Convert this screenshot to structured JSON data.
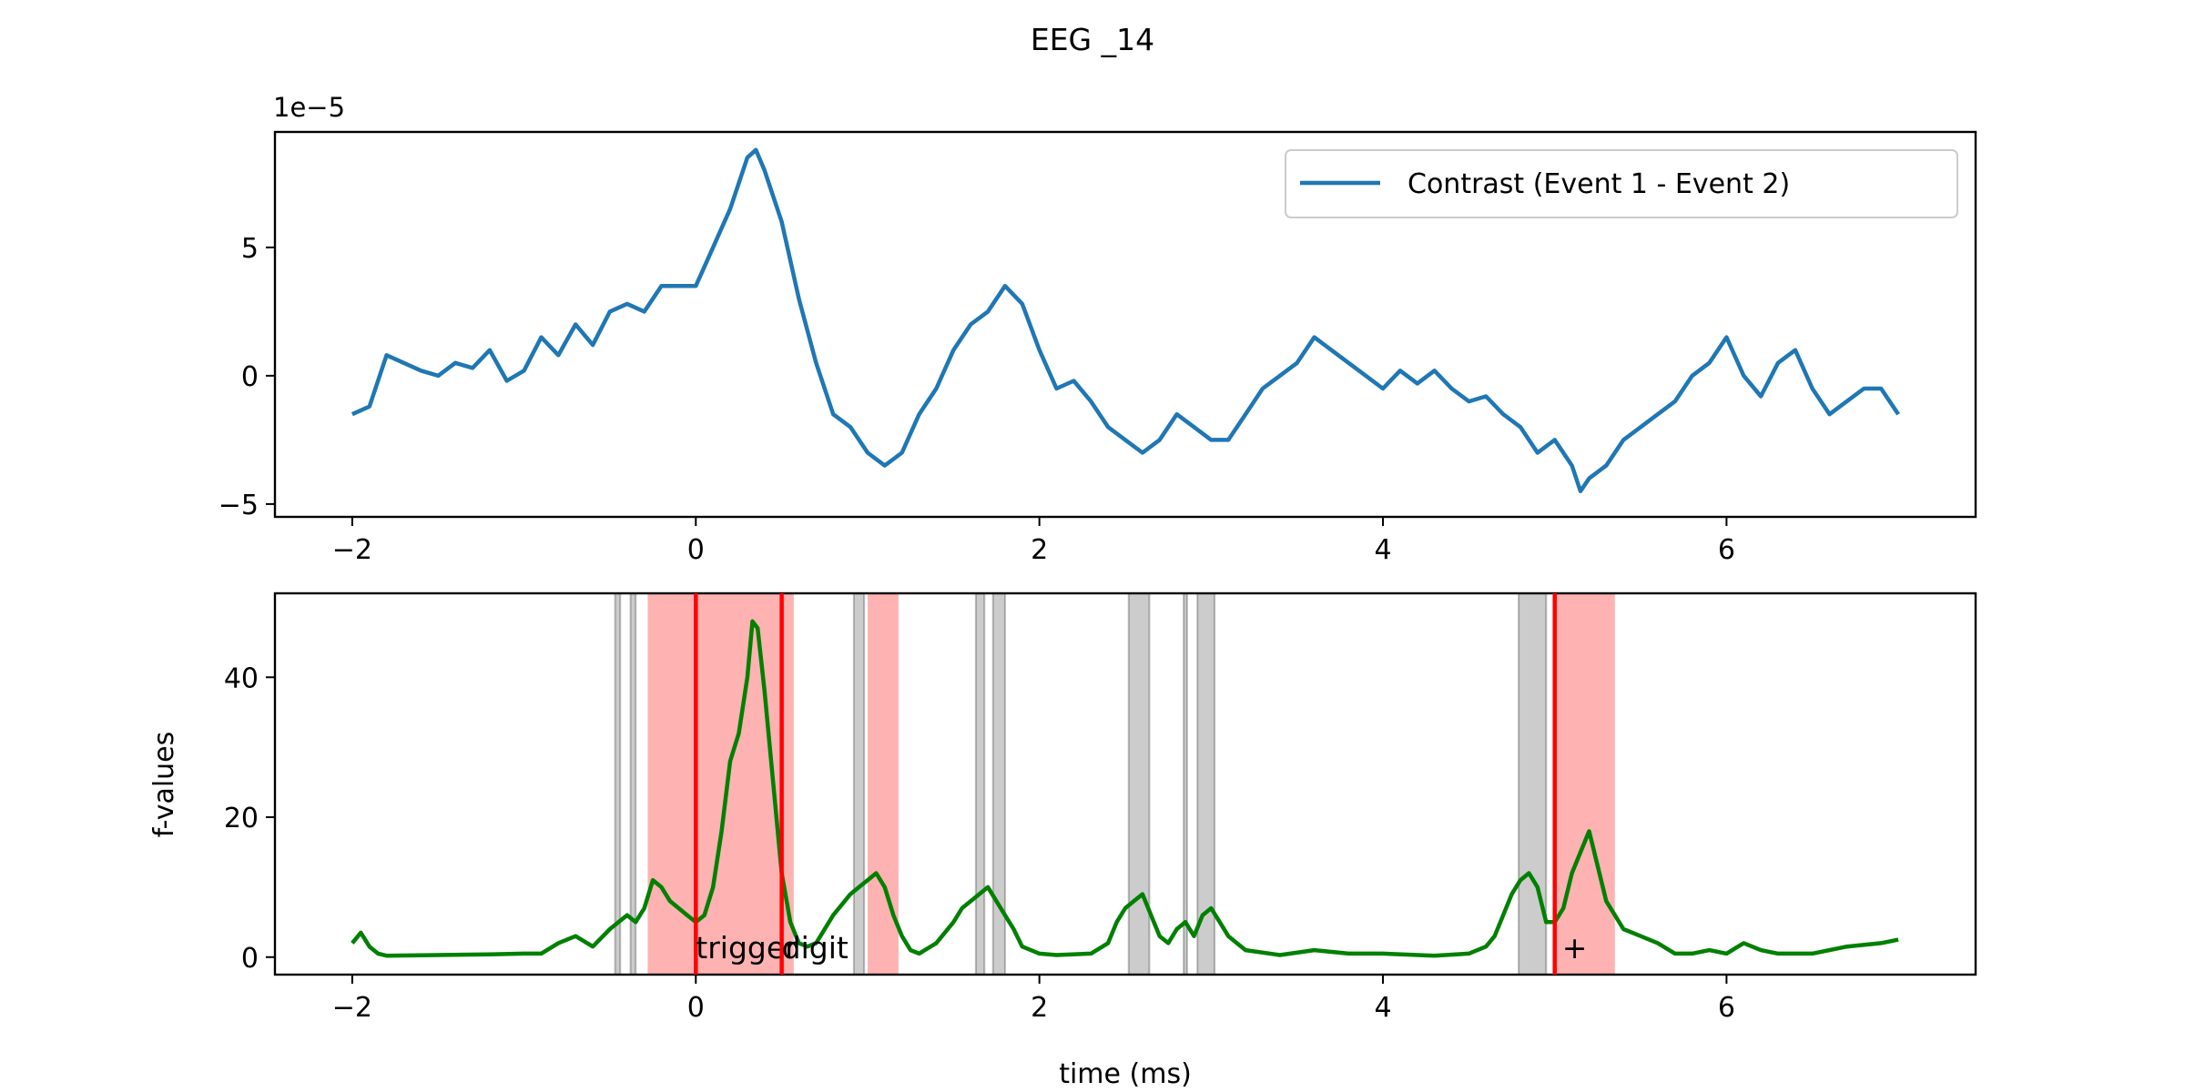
{
  "figure": {
    "title": "EEG _14"
  },
  "chart_data": [
    {
      "type": "line",
      "offset_text": "1e−5",
      "xlim": [
        -2.45,
        7.45
      ],
      "ylim": [
        -5.5,
        9.5
      ],
      "xticks": [
        -2,
        0,
        2,
        4,
        6
      ],
      "xtick_labels": [
        "−2",
        "0",
        "2",
        "4",
        "6"
      ],
      "yticks": [
        -5,
        0,
        5
      ],
      "ytick_labels": [
        "−5",
        "0",
        "5"
      ],
      "legend_position": "top-right",
      "grid": false,
      "series": [
        {
          "name": "Contrast (Event 1 - Event 2)",
          "color": "#1f77b4",
          "x": [
            -2.0,
            -1.9,
            -1.8,
            -1.7,
            -1.6,
            -1.5,
            -1.4,
            -1.3,
            -1.2,
            -1.1,
            -1.0,
            -0.9,
            -0.8,
            -0.7,
            -0.6,
            -0.5,
            -0.4,
            -0.3,
            -0.2,
            -0.1,
            0.0,
            0.1,
            0.2,
            0.3,
            0.35,
            0.4,
            0.5,
            0.6,
            0.7,
            0.8,
            0.9,
            1.0,
            1.1,
            1.2,
            1.3,
            1.4,
            1.5,
            1.6,
            1.7,
            1.8,
            1.9,
            2.0,
            2.1,
            2.2,
            2.3,
            2.4,
            2.5,
            2.6,
            2.7,
            2.8,
            2.9,
            3.0,
            3.1,
            3.2,
            3.3,
            3.4,
            3.5,
            3.6,
            3.7,
            3.8,
            3.9,
            4.0,
            4.1,
            4.2,
            4.3,
            4.4,
            4.5,
            4.6,
            4.7,
            4.8,
            4.9,
            5.0,
            5.1,
            5.15,
            5.2,
            5.3,
            5.4,
            5.5,
            5.6,
            5.7,
            5.8,
            5.9,
            6.0,
            6.1,
            6.2,
            6.3,
            6.4,
            6.5,
            6.6,
            6.7,
            6.8,
            6.9,
            7.0
          ],
          "y": [
            -1.5,
            -1.2,
            0.8,
            0.5,
            0.2,
            0.0,
            0.5,
            0.3,
            1.0,
            -0.2,
            0.2,
            1.5,
            0.8,
            2.0,
            1.2,
            2.5,
            2.8,
            2.5,
            3.5,
            3.5,
            3.5,
            5.0,
            6.5,
            8.5,
            8.8,
            8.0,
            6.0,
            3.0,
            0.5,
            -1.5,
            -2.0,
            -3.0,
            -3.5,
            -3.0,
            -1.5,
            -0.5,
            1.0,
            2.0,
            2.5,
            3.5,
            2.8,
            1.0,
            -0.5,
            -0.2,
            -1.0,
            -2.0,
            -2.5,
            -3.0,
            -2.5,
            -1.5,
            -2.0,
            -2.5,
            -2.5,
            -1.5,
            -0.5,
            0.0,
            0.5,
            1.5,
            1.0,
            0.5,
            0.0,
            -0.5,
            0.2,
            -0.3,
            0.2,
            -0.5,
            -1.0,
            -0.8,
            -1.5,
            -2.0,
            -3.0,
            -2.5,
            -3.5,
            -4.5,
            -4.0,
            -3.5,
            -2.5,
            -2.0,
            -1.5,
            -1.0,
            0.0,
            0.5,
            1.5,
            0.0,
            -0.8,
            0.5,
            1.0,
            -0.5,
            -1.5,
            -1.0,
            -0.5,
            -0.5,
            -1.5
          ]
        }
      ]
    },
    {
      "type": "line",
      "ylabel": "f-values",
      "xlabel": "time (ms)",
      "xlim": [
        -2.45,
        7.45
      ],
      "ylim": [
        -2.5,
        52.0
      ],
      "xticks": [
        -2,
        0,
        2,
        4,
        6
      ],
      "xtick_labels": [
        "−2",
        "0",
        "2",
        "4",
        "6"
      ],
      "yticks": [
        0,
        20,
        40
      ],
      "ytick_labels": [
        "0",
        "20",
        "40"
      ],
      "grid": false,
      "series": [
        {
          "color": "#008000",
          "x": [
            -2.0,
            -1.95,
            -1.9,
            -1.85,
            -1.8,
            -1.5,
            -1.2,
            -1.0,
            -0.9,
            -0.8,
            -0.7,
            -0.6,
            -0.5,
            -0.45,
            -0.4,
            -0.35,
            -0.3,
            -0.25,
            -0.2,
            -0.15,
            -0.1,
            -0.05,
            0.0,
            0.05,
            0.1,
            0.15,
            0.2,
            0.25,
            0.3,
            0.33,
            0.36,
            0.4,
            0.45,
            0.5,
            0.55,
            0.6,
            0.65,
            0.7,
            0.8,
            0.9,
            0.95,
            1.0,
            1.05,
            1.1,
            1.15,
            1.2,
            1.25,
            1.3,
            1.4,
            1.5,
            1.55,
            1.6,
            1.65,
            1.7,
            1.75,
            1.8,
            1.85,
            1.9,
            2.0,
            2.1,
            2.3,
            2.4,
            2.45,
            2.5,
            2.55,
            2.6,
            2.65,
            2.7,
            2.75,
            2.8,
            2.85,
            2.9,
            2.95,
            3.0,
            3.05,
            3.1,
            3.2,
            3.4,
            3.6,
            3.8,
            4.0,
            4.3,
            4.5,
            4.6,
            4.65,
            4.7,
            4.75,
            4.8,
            4.85,
            4.9,
            4.95,
            5.0,
            5.05,
            5.1,
            5.15,
            5.2,
            5.25,
            5.3,
            5.35,
            5.4,
            5.5,
            5.6,
            5.7,
            5.8,
            5.9,
            6.0,
            6.1,
            6.2,
            6.3,
            6.5,
            6.7,
            6.9,
            7.0
          ],
          "y": [
            2.0,
            3.5,
            1.5,
            0.5,
            0.2,
            0.3,
            0.4,
            0.5,
            0.5,
            2.0,
            3.0,
            1.5,
            4.0,
            5.0,
            6.0,
            5.0,
            7.0,
            11.0,
            10.0,
            8.0,
            7.0,
            6.0,
            5.0,
            6.0,
            10.0,
            18.0,
            28.0,
            32.0,
            40.0,
            48.0,
            47.0,
            38.0,
            25.0,
            12.0,
            5.0,
            2.0,
            1.5,
            2.0,
            6.0,
            9.0,
            10.0,
            11.0,
            12.0,
            10.0,
            6.0,
            3.0,
            1.0,
            0.5,
            2.0,
            5.0,
            7.0,
            8.0,
            9.0,
            10.0,
            8.0,
            6.0,
            4.0,
            1.5,
            0.5,
            0.3,
            0.5,
            2.0,
            5.0,
            7.0,
            8.0,
            9.0,
            6.0,
            3.0,
            2.0,
            4.0,
            5.0,
            3.0,
            6.0,
            7.0,
            5.0,
            3.0,
            1.0,
            0.3,
            1.0,
            0.5,
            0.5,
            0.2,
            0.5,
            1.5,
            3.0,
            6.0,
            9.0,
            11.0,
            12.0,
            10.0,
            5.0,
            5.0,
            7.0,
            12.0,
            15.0,
            18.0,
            13.0,
            8.0,
            6.0,
            4.0,
            3.0,
            2.0,
            0.5,
            0.5,
            1.0,
            0.5,
            2.0,
            1.0,
            0.5,
            0.5,
            1.5,
            2.0,
            2.5
          ]
        }
      ],
      "gray_spans": [
        [
          -0.47,
          -0.44
        ],
        [
          -0.38,
          -0.35
        ],
        [
          0.92,
          0.98
        ],
        [
          1.63,
          1.68
        ],
        [
          1.73,
          1.8
        ],
        [
          2.52,
          2.64
        ],
        [
          2.84,
          2.86
        ],
        [
          2.92,
          3.02
        ],
        [
          4.79,
          4.95
        ]
      ],
      "red_spans": [
        [
          -0.28,
          0.57
        ],
        [
          1.0,
          1.18
        ],
        [
          5.0,
          5.35
        ]
      ],
      "event_lines": [
        {
          "x": 0.0,
          "label": "trigger"
        },
        {
          "x": 0.5,
          "label": "digit"
        },
        {
          "x": 5.0,
          "label": "+"
        }
      ]
    }
  ]
}
